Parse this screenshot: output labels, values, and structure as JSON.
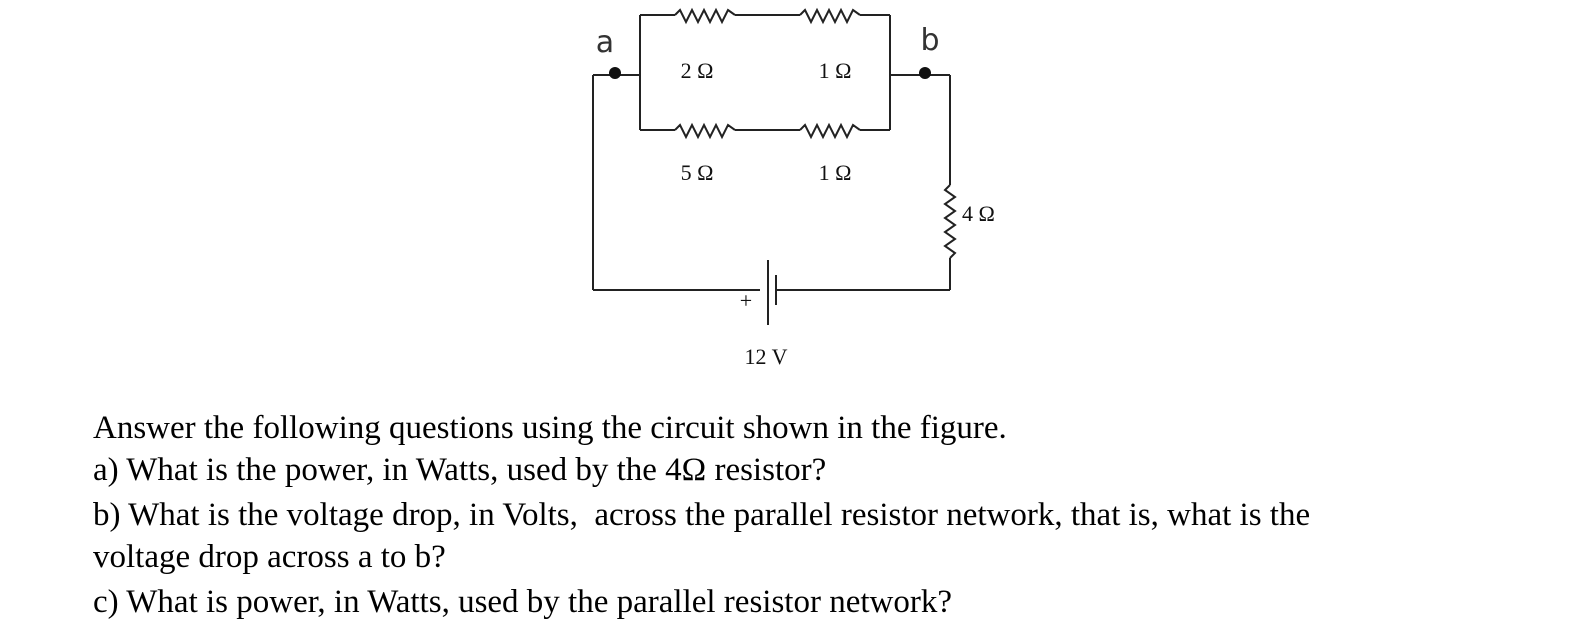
{
  "figure": {
    "nodes": [
      "a",
      "b"
    ],
    "resistors": [
      "2 Ω",
      "1 Ω",
      "5 Ω",
      "1 Ω",
      "4 Ω"
    ],
    "battery": {
      "polarity": "+",
      "label": "12 V"
    }
  },
  "questions": {
    "intro": "Answer the following questions using the circuit shown in the figure.",
    "lines": [
      "a) What is the power, in Watts, used by the 4Ω resistor?",
      "b) What is the voltage drop, in Volts,  across the parallel resistor network, that is, what is the",
      "voltage drop across a to b?",
      "c) What is power, in Watts, used by the parallel resistor network?"
    ]
  }
}
